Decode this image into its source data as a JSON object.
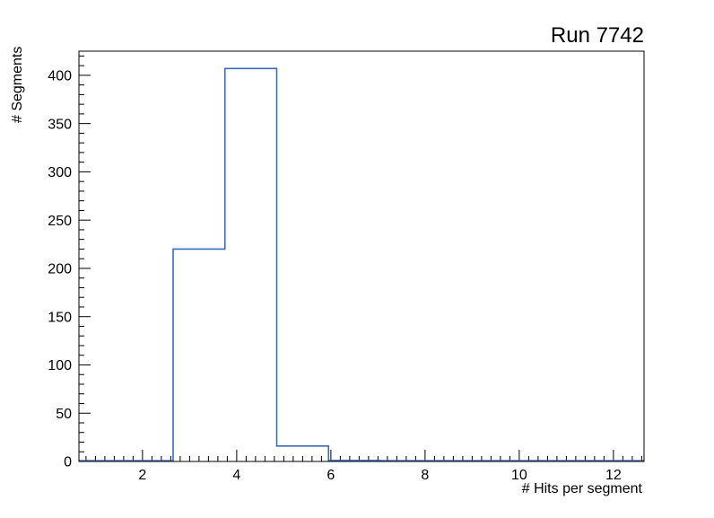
{
  "title": "Run 7742",
  "chart_data": {
    "type": "line",
    "subtype": "step-histogram (ROOT style)",
    "title": "Run 7742",
    "xlabel": "# Hits per segment",
    "ylabel": "# Segments",
    "xlim": [
      0.65,
      12.65
    ],
    "ylim": [
      0,
      425
    ],
    "x_major_ticks": [
      2,
      4,
      6,
      8,
      10,
      12
    ],
    "x_minor_step": 0.2,
    "y_major_ticks": [
      0,
      50,
      100,
      150,
      200,
      250,
      300,
      350,
      400
    ],
    "y_major_step": 50,
    "y_minor_step": 10,
    "bin_edges": [
      2.65,
      3.75,
      4.85,
      5.95,
      7.05
    ],
    "bin_values": [
      220,
      407,
      16,
      1
    ],
    "line_color": "#3A6CB8",
    "frame_color": "#000000",
    "text_color": "#000000",
    "background": "#ffffff",
    "legend": "none",
    "grid": "off"
  }
}
